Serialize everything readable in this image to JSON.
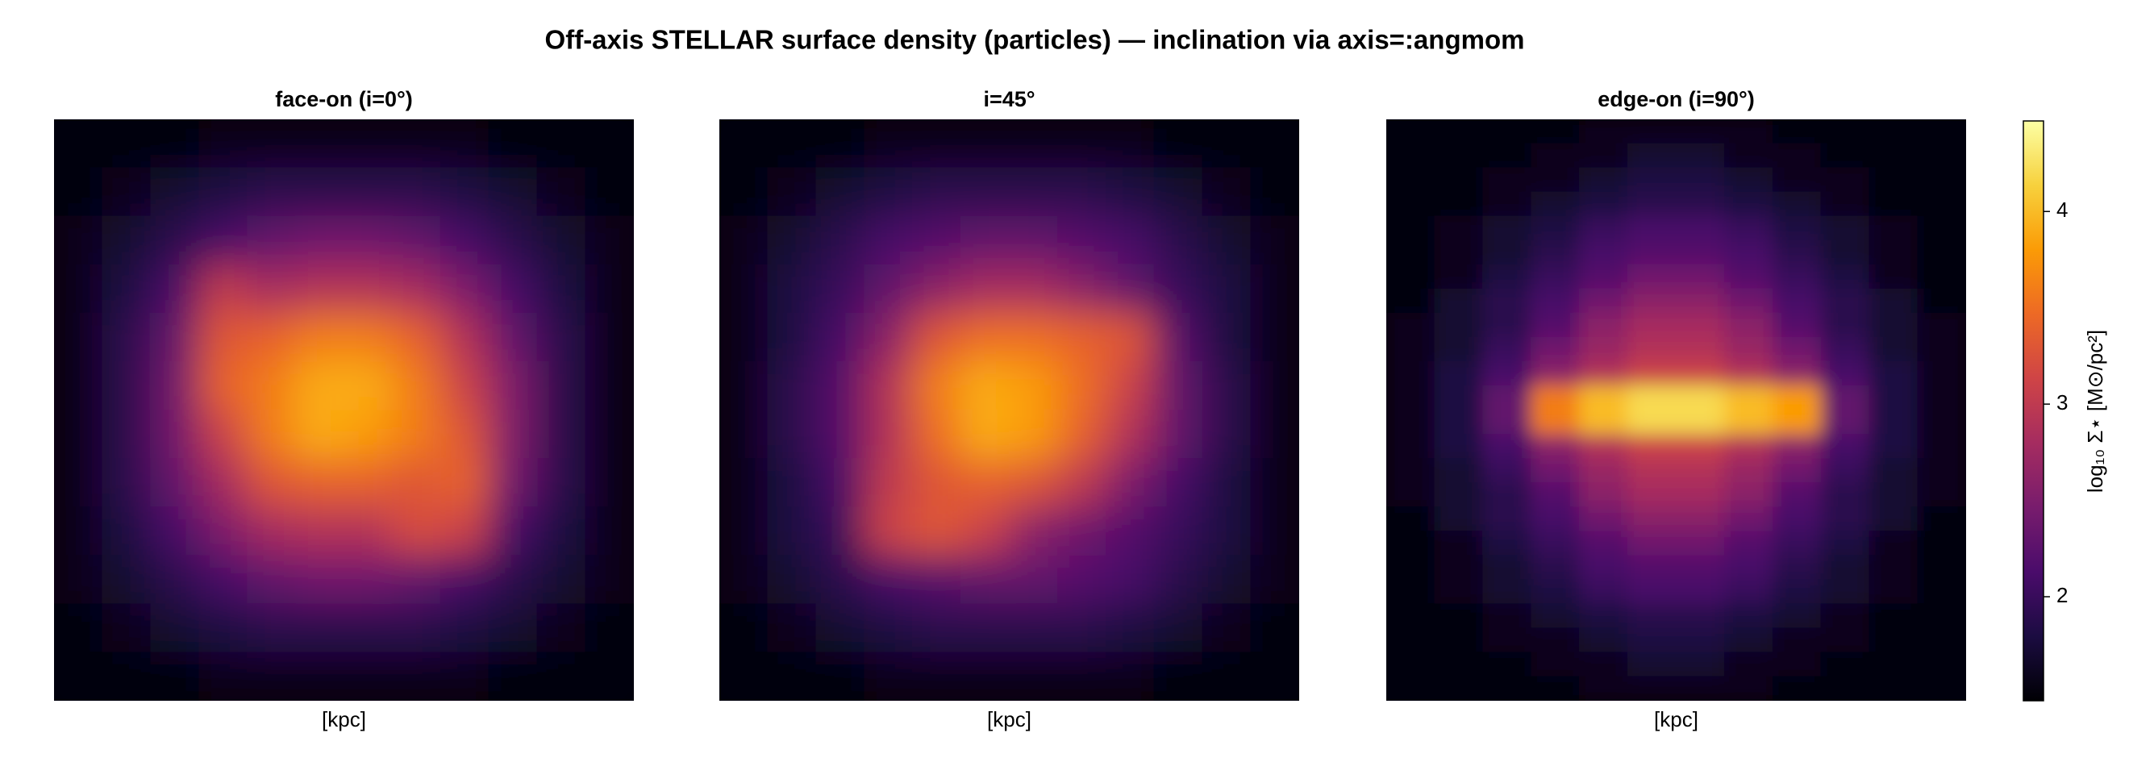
{
  "title": "Off-axis STELLAR surface density (particles) — inclination via axis=:angmom",
  "chart_data": [
    {
      "type": "heatmap",
      "title": "face-on  (i=0°)",
      "xlabel": "[kpc]",
      "z": [
        [
          1.5,
          1.5,
          1.5,
          1.6,
          1.6,
          1.6,
          1.6,
          1.6,
          1.6,
          1.5,
          1.5,
          1.5
        ],
        [
          1.5,
          1.6,
          1.7,
          1.8,
          1.9,
          1.9,
          1.9,
          1.9,
          1.8,
          1.7,
          1.6,
          1.5
        ],
        [
          1.6,
          1.7,
          1.9,
          2.1,
          2.3,
          2.4,
          2.4,
          2.3,
          2.1,
          1.9,
          1.7,
          1.6
        ],
        [
          1.6,
          1.8,
          2.1,
          3.0,
          2.8,
          2.9,
          2.9,
          2.8,
          2.5,
          2.1,
          1.8,
          1.6
        ],
        [
          1.6,
          1.9,
          2.3,
          3.3,
          3.4,
          3.6,
          3.6,
          3.4,
          2.9,
          2.3,
          1.9,
          1.6
        ],
        [
          1.6,
          1.9,
          2.4,
          3.4,
          3.6,
          3.9,
          3.9,
          3.6,
          3.1,
          2.5,
          1.9,
          1.6
        ],
        [
          1.6,
          1.9,
          2.4,
          3.1,
          3.6,
          3.9,
          3.8,
          3.6,
          3.3,
          2.5,
          1.9,
          1.6
        ],
        [
          1.6,
          1.9,
          2.3,
          2.8,
          3.3,
          3.4,
          3.4,
          3.3,
          3.4,
          2.4,
          1.9,
          1.6
        ],
        [
          1.6,
          1.8,
          2.1,
          2.5,
          2.8,
          2.9,
          2.9,
          3.2,
          3.1,
          2.1,
          1.8,
          1.6
        ],
        [
          1.6,
          1.7,
          1.9,
          2.1,
          2.3,
          2.4,
          2.4,
          2.3,
          2.1,
          1.9,
          1.7,
          1.6
        ],
        [
          1.5,
          1.6,
          1.7,
          1.8,
          1.9,
          1.9,
          1.9,
          1.9,
          1.8,
          1.7,
          1.6,
          1.5
        ],
        [
          1.5,
          1.5,
          1.5,
          1.6,
          1.6,
          1.6,
          1.6,
          1.6,
          1.6,
          1.5,
          1.5,
          1.5
        ]
      ]
    },
    {
      "type": "heatmap",
      "title": "i=45°",
      "xlabel": "[kpc]",
      "z": [
        [
          1.5,
          1.5,
          1.5,
          1.6,
          1.6,
          1.6,
          1.6,
          1.6,
          1.6,
          1.5,
          1.5,
          1.5
        ],
        [
          1.5,
          1.6,
          1.7,
          1.8,
          1.9,
          1.9,
          1.9,
          1.9,
          1.8,
          1.7,
          1.6,
          1.5
        ],
        [
          1.6,
          1.7,
          1.9,
          2.1,
          2.2,
          2.3,
          2.3,
          2.2,
          2.1,
          1.9,
          1.7,
          1.6
        ],
        [
          1.6,
          1.8,
          2.0,
          2.3,
          2.6,
          2.8,
          2.8,
          2.6,
          2.3,
          2.0,
          1.8,
          1.6
        ],
        [
          1.6,
          1.8,
          2.1,
          2.6,
          3.3,
          3.5,
          3.5,
          3.4,
          3.3,
          2.2,
          1.8,
          1.6
        ],
        [
          1.6,
          1.9,
          2.2,
          2.9,
          3.6,
          3.9,
          3.8,
          3.5,
          3.1,
          2.3,
          1.9,
          1.6
        ],
        [
          1.6,
          1.9,
          2.2,
          2.9,
          3.5,
          3.9,
          3.8,
          3.4,
          2.9,
          2.3,
          1.9,
          1.6
        ],
        [
          1.6,
          1.8,
          2.1,
          3.0,
          3.3,
          3.4,
          3.3,
          3.0,
          2.5,
          2.1,
          1.8,
          1.6
        ],
        [
          1.6,
          1.8,
          2.0,
          3.1,
          3.3,
          3.1,
          2.6,
          2.4,
          2.2,
          2.0,
          1.8,
          1.6
        ],
        [
          1.6,
          1.7,
          1.9,
          2.1,
          2.2,
          2.3,
          2.3,
          2.2,
          2.1,
          1.9,
          1.7,
          1.6
        ],
        [
          1.5,
          1.6,
          1.7,
          1.8,
          1.9,
          1.9,
          1.9,
          1.9,
          1.8,
          1.7,
          1.6,
          1.5
        ],
        [
          1.5,
          1.5,
          1.5,
          1.6,
          1.6,
          1.6,
          1.6,
          1.6,
          1.6,
          1.5,
          1.5,
          1.5
        ]
      ]
    },
    {
      "type": "heatmap",
      "title": "edge-on  (i=90°)",
      "xlabel": "[kpc]",
      "z": [
        [
          1.5,
          1.5,
          1.5,
          1.5,
          1.6,
          1.6,
          1.6,
          1.6,
          1.5,
          1.5,
          1.5,
          1.5
        ],
        [
          1.5,
          1.5,
          1.5,
          1.6,
          1.6,
          1.7,
          1.7,
          1.6,
          1.6,
          1.5,
          1.5,
          1.5
        ],
        [
          1.5,
          1.5,
          1.6,
          1.6,
          1.7,
          1.8,
          1.8,
          1.7,
          1.6,
          1.6,
          1.5,
          1.5
        ],
        [
          1.5,
          1.5,
          1.6,
          1.7,
          1.8,
          1.9,
          1.9,
          1.8,
          1.7,
          1.6,
          1.5,
          1.5
        ],
        [
          1.5,
          1.6,
          1.7,
          1.8,
          2.0,
          2.1,
          2.1,
          2.0,
          1.8,
          1.7,
          1.6,
          1.5
        ],
        [
          1.5,
          1.6,
          1.7,
          1.9,
          2.1,
          2.2,
          2.2,
          2.1,
          1.9,
          1.7,
          1.6,
          1.5
        ],
        [
          1.5,
          1.6,
          1.8,
          2.0,
          2.2,
          2.4,
          2.4,
          2.2,
          2.0,
          1.8,
          1.6,
          1.5
        ],
        [
          1.5,
          1.7,
          1.9,
          2.1,
          2.4,
          2.6,
          2.6,
          2.4,
          2.1,
          1.9,
          1.7,
          1.5
        ],
        [
          1.6,
          1.7,
          1.9,
          2.2,
          2.6,
          2.8,
          2.8,
          2.6,
          2.2,
          1.9,
          1.7,
          1.6
        ],
        [
          1.6,
          1.7,
          2.0,
          2.4,
          2.7,
          2.9,
          2.9,
          2.7,
          2.4,
          2.0,
          1.7,
          1.6
        ],
        [
          1.6,
          1.8,
          2.1,
          2.6,
          2.9,
          3.1,
          3.1,
          2.9,
          2.6,
          2.1,
          1.8,
          1.6
        ],
        [
          1.6,
          1.8,
          2.3,
          3.6,
          4.0,
          4.2,
          4.2,
          4.0,
          3.8,
          2.3,
          1.8,
          1.6
        ],
        [
          1.6,
          1.8,
          2.3,
          3.6,
          4.0,
          4.2,
          4.2,
          4.0,
          3.8,
          2.3,
          1.8,
          1.6
        ],
        [
          1.6,
          1.8,
          2.1,
          2.6,
          2.9,
          3.1,
          3.1,
          2.9,
          2.6,
          2.1,
          1.8,
          1.6
        ],
        [
          1.6,
          1.7,
          2.0,
          2.4,
          2.7,
          2.9,
          2.9,
          2.7,
          2.4,
          2.0,
          1.7,
          1.6
        ],
        [
          1.6,
          1.7,
          1.9,
          2.2,
          2.6,
          2.8,
          2.8,
          2.6,
          2.2,
          1.9,
          1.7,
          1.6
        ],
        [
          1.5,
          1.7,
          1.9,
          2.1,
          2.4,
          2.6,
          2.6,
          2.4,
          2.1,
          1.9,
          1.7,
          1.5
        ],
        [
          1.5,
          1.6,
          1.8,
          2.0,
          2.2,
          2.4,
          2.4,
          2.2,
          2.0,
          1.8,
          1.6,
          1.5
        ],
        [
          1.5,
          1.6,
          1.7,
          1.9,
          2.1,
          2.2,
          2.2,
          2.1,
          1.9,
          1.7,
          1.6,
          1.5
        ],
        [
          1.5,
          1.6,
          1.7,
          1.8,
          2.0,
          2.1,
          2.1,
          2.0,
          1.8,
          1.7,
          1.6,
          1.5
        ],
        [
          1.5,
          1.5,
          1.6,
          1.7,
          1.8,
          1.9,
          1.9,
          1.8,
          1.7,
          1.6,
          1.5,
          1.5
        ],
        [
          1.5,
          1.5,
          1.6,
          1.6,
          1.7,
          1.8,
          1.8,
          1.7,
          1.6,
          1.6,
          1.5,
          1.5
        ],
        [
          1.5,
          1.5,
          1.5,
          1.6,
          1.6,
          1.7,
          1.7,
          1.6,
          1.6,
          1.5,
          1.5,
          1.5
        ],
        [
          1.5,
          1.5,
          1.5,
          1.5,
          1.6,
          1.6,
          1.6,
          1.6,
          1.5,
          1.5,
          1.5,
          1.5
        ]
      ]
    }
  ],
  "colorbar": {
    "label": "log₁₀ Σ⋆ [M⊙/pc²]",
    "clim": [
      1.46,
      4.47
    ],
    "ticks": [
      2,
      3,
      4
    ],
    "colors": [
      "#000004",
      "#1b0c41",
      "#4a0c6b",
      "#781c6d",
      "#a52c60",
      "#cf4446",
      "#ed6925",
      "#fb9b06",
      "#f7d13d",
      "#fcffa4"
    ]
  }
}
